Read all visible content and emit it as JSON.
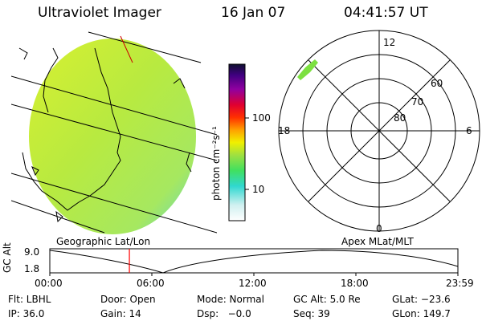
{
  "header": {
    "instrument": "Ultraviolet Imager",
    "date": "16 Jan 07",
    "time": "04:41:57 UT"
  },
  "left_panel": {
    "label": "Geographic Lat/Lon",
    "fill_color": "#c8f040"
  },
  "colorbar": {
    "unit_label": "photon cm⁻²s⁻¹",
    "ticks": [
      "100",
      "10"
    ],
    "scale": "log"
  },
  "right_panel": {
    "label": "Apex MLat/MLT",
    "mlt_labels": {
      "top": "12",
      "right": "6",
      "bottom": "0",
      "left": "18"
    },
    "mlat_labels": [
      "60",
      "70",
      "80"
    ]
  },
  "timeline": {
    "ylabel": "GC Alt",
    "y_ticks": [
      "9.0",
      "1.8"
    ],
    "x_ticks": [
      "00:00",
      "06:00",
      "12:00",
      "18:00",
      "23:59"
    ],
    "current_time_fraction": 0.195,
    "marker_color": "#ff0000"
  },
  "status": {
    "row1": {
      "flt": "Flt: LBHL",
      "door": "Door: Open",
      "mode": "Mode: Normal",
      "gc_alt": "GC Alt: 5.0 Re",
      "glat": "GLat: −23.6"
    },
    "row2": {
      "ip": "IP: 36.0",
      "gain": "Gain: 14",
      "dsp": "Dsp:   −0.0",
      "seq": "Seq: 39",
      "glon": "GLon: 149.7"
    }
  }
}
